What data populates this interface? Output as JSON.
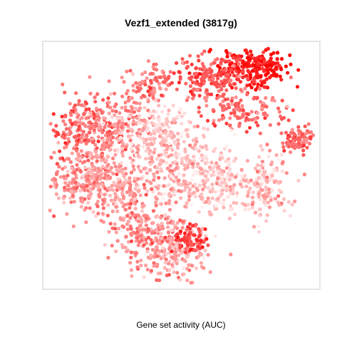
{
  "chart_data": {
    "type": "scatter",
    "title": "Vezf1_extended (3817g)",
    "xlabel": "Gene set activity (AUC)",
    "ylabel": "",
    "axes_visible": false,
    "grid": false,
    "legend": "none",
    "color_scale": {
      "low": "#fff0f0",
      "high": "#ff0000"
    },
    "xlim": [
      0,
      100
    ],
    "ylim": [
      0,
      100
    ],
    "clusters": [
      {
        "cx": 76,
        "cy": 90,
        "sx": 6,
        "sy": 4,
        "n": 230,
        "level": 0.92
      },
      {
        "cx": 60,
        "cy": 86,
        "sx": 7,
        "sy": 5,
        "n": 190,
        "level": 0.62
      },
      {
        "cx": 38,
        "cy": 84,
        "sx": 5,
        "sy": 4,
        "n": 80,
        "level": 0.5
      },
      {
        "cx": 72,
        "cy": 72,
        "sx": 8,
        "sy": 4,
        "n": 120,
        "level": 0.55
      },
      {
        "cx": 14,
        "cy": 64,
        "sx": 6,
        "sy": 7,
        "n": 200,
        "level": 0.58
      },
      {
        "cx": 27,
        "cy": 66,
        "sx": 7,
        "sy": 7,
        "n": 200,
        "level": 0.42
      },
      {
        "cx": 40,
        "cy": 64,
        "sx": 7,
        "sy": 6,
        "n": 160,
        "level": 0.18
      },
      {
        "cx": 15,
        "cy": 44,
        "sx": 7,
        "sy": 7,
        "n": 240,
        "level": 0.38
      },
      {
        "cx": 28,
        "cy": 40,
        "sx": 6,
        "sy": 7,
        "n": 160,
        "level": 0.35
      },
      {
        "cx": 48,
        "cy": 48,
        "sx": 7,
        "sy": 7,
        "n": 180,
        "level": 0.28
      },
      {
        "cx": 62,
        "cy": 44,
        "sx": 6,
        "sy": 8,
        "n": 200,
        "level": 0.16
      },
      {
        "cx": 80,
        "cy": 42,
        "sx": 5,
        "sy": 7,
        "n": 150,
        "level": 0.24
      },
      {
        "cx": 92,
        "cy": 60,
        "sx": 3,
        "sy": 2.5,
        "n": 90,
        "level": 0.58
      },
      {
        "cx": 38,
        "cy": 20,
        "sx": 7,
        "sy": 7,
        "n": 220,
        "level": 0.42
      },
      {
        "cx": 50,
        "cy": 16,
        "sx": 5,
        "sy": 6,
        "n": 140,
        "level": 0.32
      },
      {
        "cx": 53,
        "cy": 20,
        "sx": 3,
        "sy": 3,
        "n": 70,
        "level": 0.75
      }
    ]
  }
}
